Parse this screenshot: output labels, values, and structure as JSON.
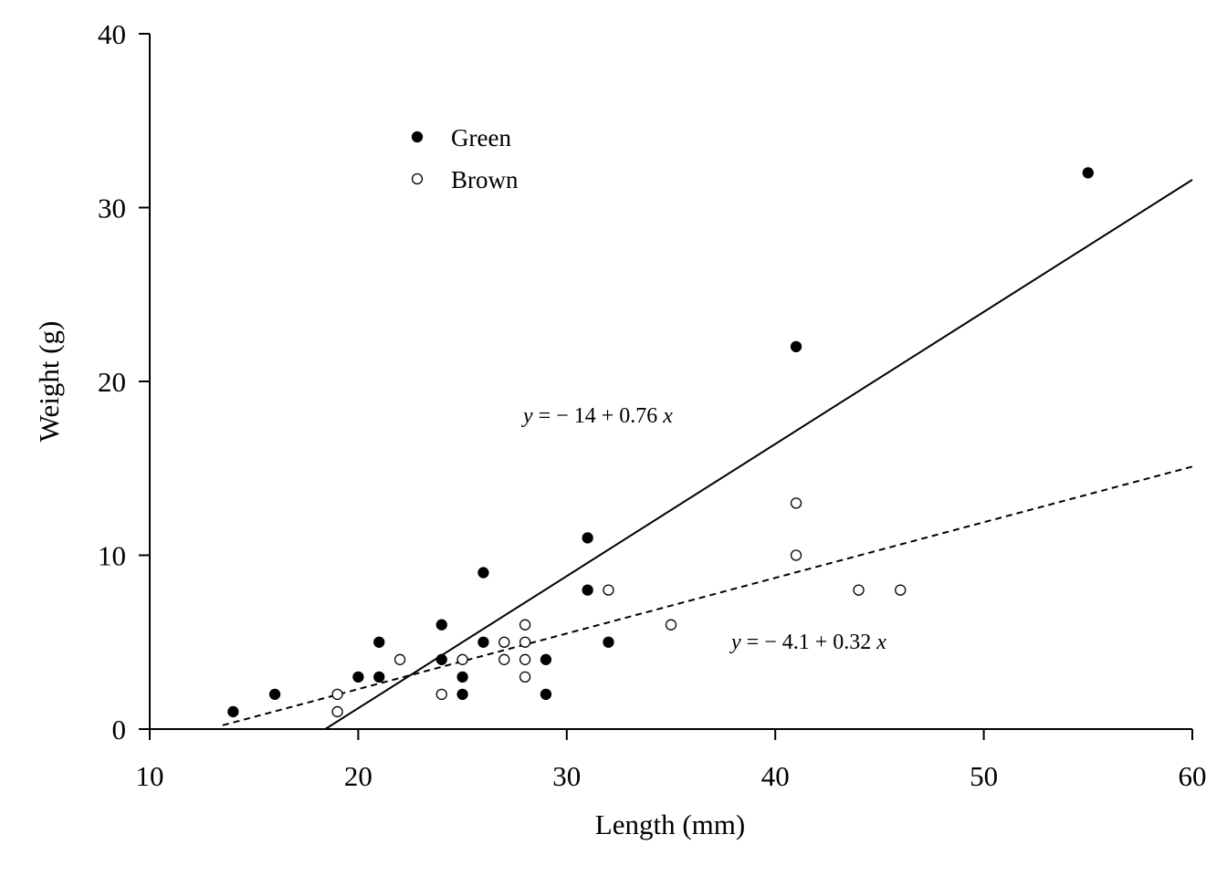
{
  "chart_data": {
    "type": "scatter",
    "xlabel": "Length (mm)",
    "ylabel": "Weight (g)",
    "xlim": [
      10,
      60
    ],
    "ylim": [
      0,
      40
    ],
    "x_ticks": [
      10,
      20,
      30,
      40,
      50,
      60
    ],
    "y_ticks": [
      0,
      10,
      20,
      30,
      40
    ],
    "grid": false,
    "legend_position": "top-left",
    "series": [
      {
        "name": "Green",
        "marker": "filled-circle",
        "color": "#000000",
        "points": [
          [
            14,
            1
          ],
          [
            16,
            2
          ],
          [
            20,
            3
          ],
          [
            21,
            5
          ],
          [
            21,
            3
          ],
          [
            24,
            6
          ],
          [
            24,
            4
          ],
          [
            25,
            3
          ],
          [
            25,
            2
          ],
          [
            26,
            9
          ],
          [
            26,
            5
          ],
          [
            29,
            4
          ],
          [
            29,
            2
          ],
          [
            31,
            11
          ],
          [
            31,
            8
          ],
          [
            32,
            5
          ],
          [
            41,
            22
          ],
          [
            55,
            32
          ]
        ],
        "fit": {
          "intercept": -14,
          "slope": 0.76,
          "line_style": "solid",
          "x_range": [
            18.42,
            60
          ]
        },
        "equation": {
          "prefix": "y",
          "body": " = − 14 + 0.76 ",
          "suffix": "x"
        }
      },
      {
        "name": "Brown",
        "marker": "open-circle",
        "color": "#000000",
        "points": [
          [
            19,
            2
          ],
          [
            19,
            1
          ],
          [
            22,
            4
          ],
          [
            24,
            2
          ],
          [
            25,
            4
          ],
          [
            27,
            5
          ],
          [
            27,
            4
          ],
          [
            28,
            6
          ],
          [
            28,
            5
          ],
          [
            28,
            4
          ],
          [
            28,
            3
          ],
          [
            32,
            8
          ],
          [
            35,
            6
          ],
          [
            41,
            13
          ],
          [
            41,
            10
          ],
          [
            44,
            8
          ],
          [
            46,
            8
          ]
        ],
        "fit": {
          "intercept": -4.1,
          "slope": 0.32,
          "line_style": "dashed",
          "x_range": [
            13.5,
            60
          ]
        },
        "equation": {
          "prefix": "y",
          "body": " = − 4.1 + 0.32 ",
          "suffix": "x"
        }
      }
    ]
  }
}
